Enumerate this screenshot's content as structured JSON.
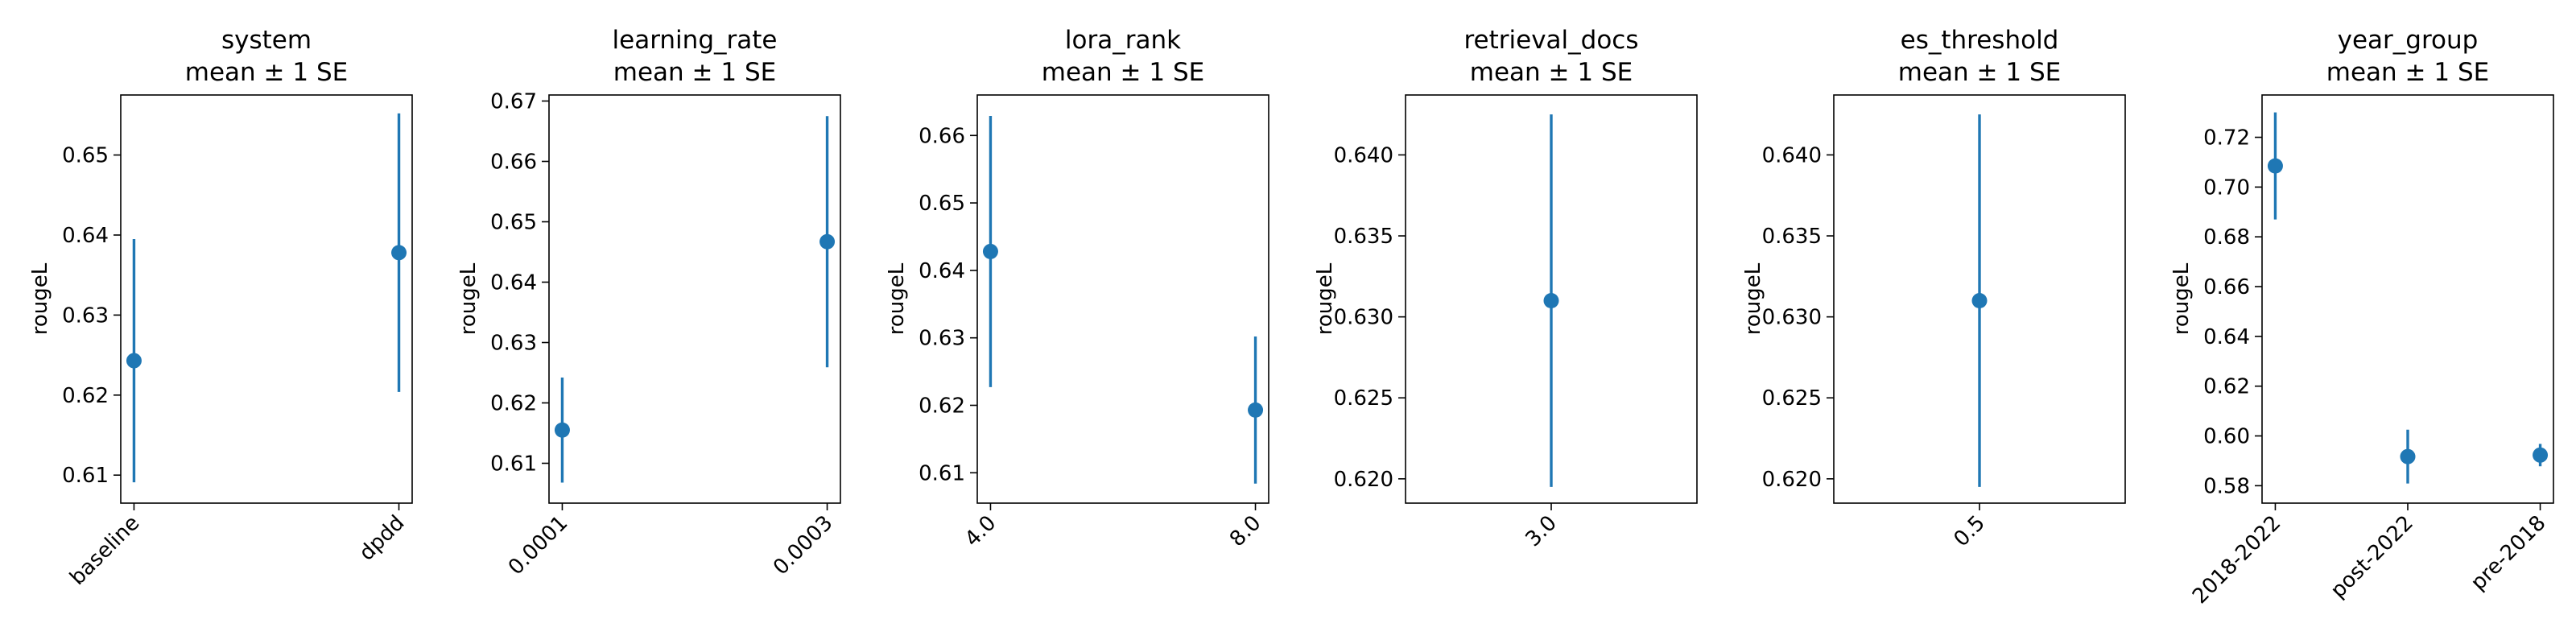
{
  "chart_data": [
    {
      "type": "scatter",
      "title": "system",
      "subtitle": "mean ± 1 SE",
      "ylabel": "rougeL",
      "categories": [
        "baseline",
        "dpdd"
      ],
      "series": [
        {
          "values": [
            0.6243,
            0.6378
          ],
          "err": [
            0.0152,
            0.0174
          ]
        }
      ],
      "ylim": [
        0.6065,
        0.6575
      ],
      "yticks": [
        0.61,
        0.62,
        0.63,
        0.64,
        0.65
      ],
      "ytick_labels": [
        "0.61",
        "0.62",
        "0.63",
        "0.64",
        "0.65"
      ],
      "color": "#1f77b4"
    },
    {
      "type": "scatter",
      "title": "learning_rate",
      "subtitle": "mean ± 1 SE",
      "ylabel": "rougeL",
      "categories": [
        "0.0001",
        "0.0003"
      ],
      "series": [
        {
          "values": [
            0.6155,
            0.6467
          ],
          "err": [
            0.0087,
            0.0208
          ]
        }
      ],
      "ylim": [
        0.6034,
        0.671
      ],
      "yticks": [
        0.61,
        0.62,
        0.63,
        0.64,
        0.65,
        0.66,
        0.67
      ],
      "ytick_labels": [
        "0.61",
        "0.62",
        "0.63",
        "0.64",
        "0.65",
        "0.66",
        "0.67"
      ],
      "color": "#1f77b4"
    },
    {
      "type": "scatter",
      "title": "lora_rank",
      "subtitle": "mean ± 1 SE",
      "ylabel": "rougeL",
      "categories": [
        "4.0",
        "8.0"
      ],
      "series": [
        {
          "values": [
            0.6428,
            0.6193
          ],
          "err": [
            0.0201,
            0.0109
          ]
        }
      ],
      "ylim": [
        0.6055,
        0.666
      ],
      "yticks": [
        0.61,
        0.62,
        0.63,
        0.64,
        0.65,
        0.66
      ],
      "ytick_labels": [
        "0.61",
        "0.62",
        "0.63",
        "0.64",
        "0.65",
        "0.66"
      ],
      "color": "#1f77b4"
    },
    {
      "type": "scatter",
      "title": "retrieval_docs",
      "subtitle": "mean ± 1 SE",
      "ylabel": "rougeL",
      "categories": [
        "3.0"
      ],
      "series": [
        {
          "values": [
            0.631
          ],
          "err": [
            0.0115
          ]
        }
      ],
      "ylim": [
        0.6185,
        0.6437
      ],
      "yticks": [
        0.62,
        0.625,
        0.63,
        0.635,
        0.64
      ],
      "ytick_labels": [
        "0.620",
        "0.625",
        "0.630",
        "0.635",
        "0.640"
      ],
      "color": "#1f77b4"
    },
    {
      "type": "scatter",
      "title": "es_threshold",
      "subtitle": "mean ± 1 SE",
      "ylabel": "rougeL",
      "categories": [
        "0.5"
      ],
      "series": [
        {
          "values": [
            0.631
          ],
          "err": [
            0.0115
          ]
        }
      ],
      "ylim": [
        0.6185,
        0.6437
      ],
      "yticks": [
        0.62,
        0.625,
        0.63,
        0.635,
        0.64
      ],
      "ytick_labels": [
        "0.620",
        "0.625",
        "0.630",
        "0.635",
        "0.640"
      ],
      "color": "#1f77b4"
    },
    {
      "type": "scatter",
      "title": "year_group",
      "subtitle": "mean ± 1 SE",
      "ylabel": "rougeL",
      "categories": [
        "2018-2022",
        "post-2022",
        "pre-2018"
      ],
      "series": [
        {
          "values": [
            0.7085,
            0.5917,
            0.5923
          ],
          "err": [
            0.0215,
            0.0108,
            0.0045
          ]
        }
      ],
      "ylim": [
        0.573,
        0.737
      ],
      "yticks": [
        0.58,
        0.6,
        0.62,
        0.64,
        0.66,
        0.68,
        0.7,
        0.72
      ],
      "ytick_labels": [
        "0.58",
        "0.60",
        "0.62",
        "0.64",
        "0.66",
        "0.68",
        "0.70",
        "0.72"
      ],
      "color": "#1f77b4"
    }
  ]
}
